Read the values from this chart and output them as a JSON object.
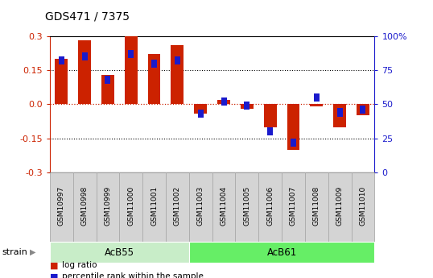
{
  "title": "GDS471 / 7375",
  "samples": [
    "GSM10997",
    "GSM10998",
    "GSM10999",
    "GSM11000",
    "GSM11001",
    "GSM11002",
    "GSM11003",
    "GSM11004",
    "GSM11005",
    "GSM11006",
    "GSM11007",
    "GSM11008",
    "GSM11009",
    "GSM11010"
  ],
  "log_ratio": [
    0.2,
    0.28,
    0.13,
    0.3,
    0.22,
    0.26,
    -0.04,
    0.02,
    -0.02,
    -0.1,
    -0.2,
    -0.01,
    -0.1,
    -0.05
  ],
  "percentile_rank": [
    82,
    85,
    68,
    87,
    80,
    82,
    43,
    52,
    49,
    30,
    22,
    55,
    44,
    46
  ],
  "groups": [
    {
      "label": "AcB55",
      "start": 0,
      "end": 5,
      "color": "#c8edc8"
    },
    {
      "label": "AcB61",
      "start": 6,
      "end": 13,
      "color": "#66ee66"
    }
  ],
  "ylim": [
    -0.3,
    0.3
  ],
  "yticks_left": [
    -0.3,
    -0.15,
    0.0,
    0.15,
    0.3
  ],
  "yticks_right": [
    0,
    25,
    50,
    75,
    100
  ],
  "hlines_dotted": [
    -0.15,
    0.15
  ],
  "hline_red": 0.0,
  "bar_color": "#cc2200",
  "dot_color": "#1a1acc",
  "label_bg": "#d4d4d4",
  "label_border": "#aaaaaa",
  "legend_log_ratio": "log ratio",
  "legend_percentile": "percentile rank within the sample",
  "strain_label": "strain",
  "bar_width": 0.55
}
